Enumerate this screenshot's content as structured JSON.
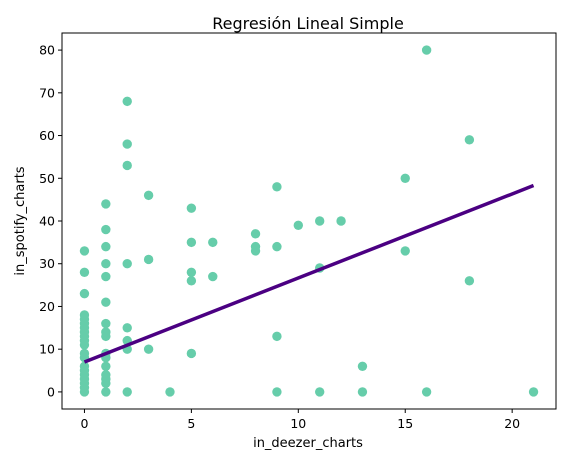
{
  "chart_data": {
    "type": "scatter",
    "title": "Regresión Lineal Simple",
    "xlabel": "in_deezer_charts",
    "ylabel": "in_spotify_charts",
    "xlim": [
      -1.05,
      22.05
    ],
    "ylim": [
      -4,
      84
    ],
    "xticks": [
      0,
      5,
      10,
      15,
      20
    ],
    "yticks": [
      0,
      10,
      20,
      30,
      40,
      50,
      60,
      70,
      80
    ],
    "grid": false,
    "point_color": "#66cdaa",
    "line_color": "#4b0082",
    "points": [
      [
        0,
        0
      ],
      [
        0,
        1
      ],
      [
        0,
        2
      ],
      [
        0,
        3
      ],
      [
        0,
        4
      ],
      [
        0,
        5
      ],
      [
        0,
        6
      ],
      [
        0,
        8
      ],
      [
        0,
        9
      ],
      [
        0,
        11
      ],
      [
        0,
        12
      ],
      [
        0,
        13
      ],
      [
        0,
        14
      ],
      [
        0,
        15
      ],
      [
        0,
        16
      ],
      [
        0,
        17
      ],
      [
        0,
        18
      ],
      [
        0,
        23
      ],
      [
        0,
        28
      ],
      [
        0,
        33
      ],
      [
        1,
        0
      ],
      [
        1,
        2
      ],
      [
        1,
        3
      ],
      [
        1,
        4
      ],
      [
        1,
        6
      ],
      [
        1,
        8
      ],
      [
        1,
        9
      ],
      [
        1,
        13
      ],
      [
        1,
        14
      ],
      [
        1,
        16
      ],
      [
        1,
        21
      ],
      [
        1,
        27
      ],
      [
        1,
        30
      ],
      [
        1,
        34
      ],
      [
        1,
        38
      ],
      [
        1,
        44
      ],
      [
        2,
        0
      ],
      [
        2,
        10
      ],
      [
        2,
        12
      ],
      [
        2,
        15
      ],
      [
        2,
        30
      ],
      [
        2,
        53
      ],
      [
        2,
        58
      ],
      [
        2,
        68
      ],
      [
        3,
        10
      ],
      [
        3,
        31
      ],
      [
        3,
        46
      ],
      [
        4,
        0
      ],
      [
        5,
        9
      ],
      [
        5,
        26
      ],
      [
        5,
        28
      ],
      [
        5,
        35
      ],
      [
        5,
        43
      ],
      [
        6,
        27
      ],
      [
        6,
        35
      ],
      [
        8,
        33
      ],
      [
        8,
        34
      ],
      [
        8,
        37
      ],
      [
        9,
        0
      ],
      [
        9,
        13
      ],
      [
        9,
        34
      ],
      [
        9,
        48
      ],
      [
        10,
        39
      ],
      [
        11,
        0
      ],
      [
        11,
        29
      ],
      [
        11,
        40
      ],
      [
        12,
        40
      ],
      [
        13,
        0
      ],
      [
        13,
        6
      ],
      [
        15,
        33
      ],
      [
        15,
        50
      ],
      [
        16,
        0
      ],
      [
        16,
        80
      ],
      [
        18,
        26
      ],
      [
        18,
        59
      ],
      [
        21,
        0
      ]
    ],
    "regression_line": {
      "x": [
        0,
        21
      ],
      "y": [
        7.0,
        48.3
      ]
    }
  }
}
